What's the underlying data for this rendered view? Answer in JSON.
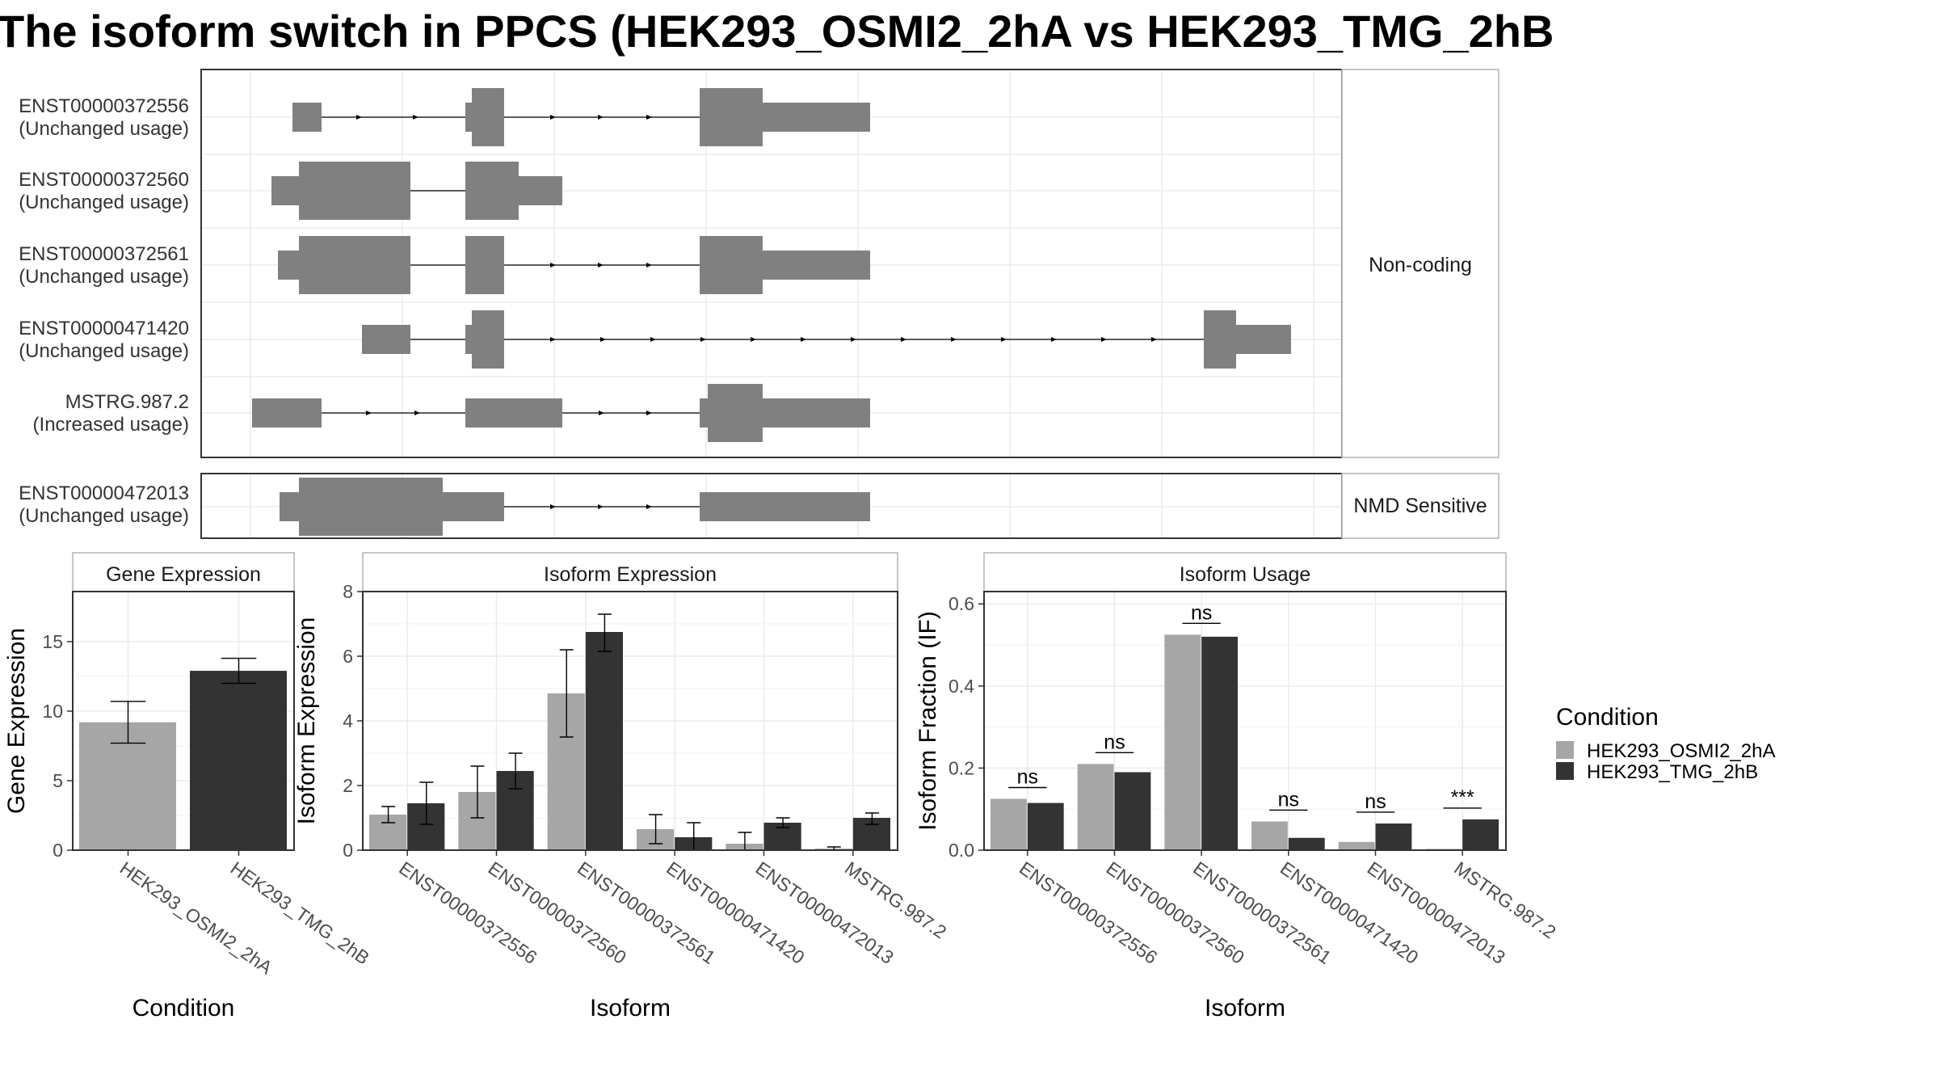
{
  "title": "The isoform switch in PPCS (HEK293_OSMI2_2hA vs HEK293_TMG_2hB",
  "colors": {
    "exon": "#808080",
    "condition_a": "#a6a6a6",
    "condition_b": "#333333",
    "grid": "#ebebeb",
    "panel_border": "#333333",
    "strip_border": "#b3b3b3"
  },
  "structure": {
    "groups": [
      {
        "label": "Non-coding",
        "transcripts": [
          {
            "id": "ENST00000372556",
            "status": "(Unchanged usage)"
          },
          {
            "id": "ENST00000372560",
            "status": "(Unchanged usage)"
          },
          {
            "id": "ENST00000372561",
            "status": "(Unchanged usage)"
          },
          {
            "id": "ENST00000471420",
            "status": "(Unchanged usage)"
          },
          {
            "id": "MSTRG.987.2",
            "status": "(Increased usage)"
          }
        ]
      },
      {
        "label": "NMD Sensitive",
        "transcripts": [
          {
            "id": "ENST00000472013",
            "status": "(Unchanged usage)"
          }
        ]
      }
    ]
  },
  "legend": {
    "title": "Condition",
    "items": [
      "HEK293_OSMI2_2hA",
      "HEK293_TMG_2hB"
    ]
  },
  "chart_data": [
    {
      "type": "bar",
      "title": "Gene Expression",
      "xlabel": "Condition",
      "ylabel": "Gene Expression",
      "ylim": [
        0,
        18.6
      ],
      "yticks": [
        0,
        5,
        10,
        15
      ],
      "categories": [
        "HEK293_OSMI2_2hA",
        "HEK293_TMG_2hB"
      ],
      "values": [
        9.2,
        12.9
      ],
      "errors": [
        [
          7.7,
          10.7
        ],
        [
          12.0,
          13.8
        ]
      ]
    },
    {
      "type": "bar",
      "title": "Isoform Expression",
      "xlabel": "Isoform",
      "ylabel": "Isoform Expression",
      "ylim": [
        0,
        8.0
      ],
      "yticks": [
        0,
        2,
        4,
        6,
        8
      ],
      "categories": [
        "ENST00000372556",
        "ENST00000372560",
        "ENST00000372561",
        "ENST00000471420",
        "ENST00000472013",
        "MSTRG.987.2"
      ],
      "series": [
        {
          "name": "HEK293_OSMI2_2hA",
          "values": [
            1.1,
            1.8,
            4.85,
            0.65,
            0.2,
            0.05
          ],
          "errors": [
            [
              0.85,
              1.35
            ],
            [
              1.0,
              2.6
            ],
            [
              3.5,
              6.2
            ],
            [
              0.2,
              1.1
            ],
            [
              0.0,
              0.55
            ],
            [
              0.0,
              0.1
            ]
          ]
        },
        {
          "name": "HEK293_TMG_2hB",
          "values": [
            1.45,
            2.45,
            6.75,
            0.4,
            0.85,
            1.0
          ],
          "errors": [
            [
              0.8,
              2.1
            ],
            [
              1.9,
              3.0
            ],
            [
              6.15,
              7.3
            ],
            [
              0.0,
              0.85
            ],
            [
              0.7,
              1.0
            ],
            [
              0.8,
              1.15
            ]
          ]
        }
      ]
    },
    {
      "type": "bar",
      "title": "Isoform Usage",
      "xlabel": "Isoform",
      "ylabel": "Isoform Fraction (IF)",
      "ylim": [
        0,
        0.63
      ],
      "yticks": [
        "0.0",
        "0.2",
        "0.4",
        "0.6"
      ],
      "categories": [
        "ENST00000372556",
        "ENST00000372560",
        "ENST00000372561",
        "ENST00000471420",
        "ENST00000472013",
        "MSTRG.987.2"
      ],
      "series": [
        {
          "name": "HEK293_OSMI2_2hA",
          "values": [
            0.125,
            0.21,
            0.525,
            0.07,
            0.02,
            0.003
          ]
        },
        {
          "name": "HEK293_TMG_2hB",
          "values": [
            0.115,
            0.19,
            0.52,
            0.03,
            0.065,
            0.075
          ]
        }
      ],
      "significance": [
        "ns",
        "ns",
        "ns",
        "ns",
        "ns",
        "***"
      ]
    }
  ]
}
